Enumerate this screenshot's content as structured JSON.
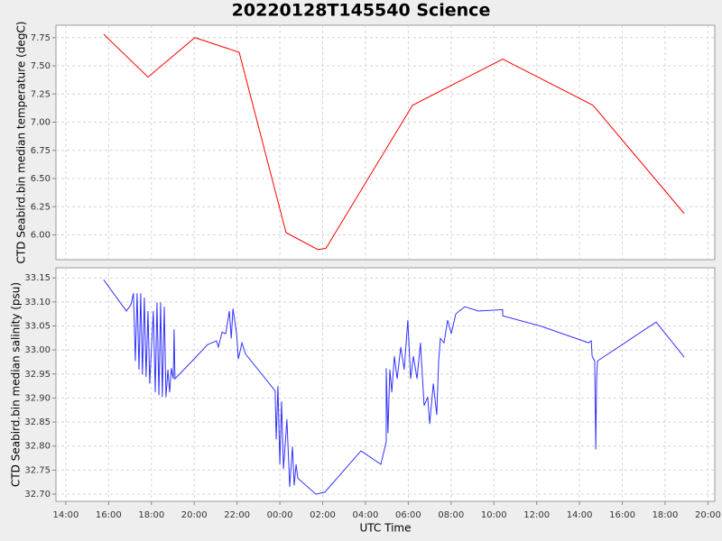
{
  "chart_data": [
    {
      "type": "line",
      "title": "20220128T145540 Science",
      "ylabel": "CTD Seabird.bin median temperature (degC)",
      "x": [
        15.77,
        17.84,
        20.03,
        22.1,
        24.29,
        25.77,
        26.15,
        30.2,
        34.41,
        38.63,
        42.89
      ],
      "values": [
        7.78,
        7.4,
        7.75,
        7.62,
        6.02,
        5.87,
        5.88,
        7.15,
        7.56,
        7.15,
        6.19
      ],
      "color": "#ff0000",
      "ylim": [
        5.78,
        7.86
      ],
      "yticks": [
        {
          "value": 6.0,
          "label": "6.00"
        },
        6.25,
        {
          "value": 6.5,
          "label": "6.50"
        },
        6.75,
        {
          "value": 7.0,
          "label": "7.00"
        },
        7.25,
        {
          "value": 7.5,
          "label": "7.50"
        },
        7.75
      ],
      "grid": true
    },
    {
      "type": "line",
      "ylabel": "CTD Seabird.bin median salinity (psu)",
      "xlabel": "UTC Time",
      "x": [
        15.77,
        16.83,
        17.04,
        17.16,
        17.25,
        17.33,
        17.42,
        17.5,
        17.58,
        17.67,
        17.75,
        17.84,
        17.92,
        18.09,
        18.18,
        18.26,
        18.35,
        18.43,
        18.51,
        18.6,
        18.68,
        18.77,
        18.85,
        18.93,
        19.02,
        19.06,
        19.1,
        19.99,
        20.62,
        21.04,
        21.13,
        21.3,
        21.47,
        21.64,
        21.73,
        21.81,
        21.98,
        22.06,
        22.23,
        22.39,
        23.78,
        23.83,
        23.91,
        24.0,
        24.08,
        24.17,
        24.33,
        24.46,
        24.59,
        24.67,
        24.76,
        24.84,
        25.68,
        26.1,
        27.79,
        28.72,
        28.97,
        28.97,
        29.05,
        29.14,
        29.23,
        29.35,
        29.48,
        29.65,
        29.81,
        29.98,
        30.11,
        30.24,
        30.41,
        30.57,
        30.74,
        30.91,
        31.0,
        31.17,
        31.33,
        31.42,
        31.5,
        31.67,
        31.84,
        32.01,
        32.22,
        32.64,
        33.27,
        34.41,
        34.41,
        36.23,
        38.42,
        38.55,
        38.59,
        38.71,
        38.76,
        38.8,
        38.84,
        41.58,
        42.89
      ],
      "values": [
        33.146,
        33.081,
        33.094,
        33.118,
        32.977,
        33.118,
        32.959,
        33.118,
        32.949,
        33.109,
        32.944,
        33.081,
        32.93,
        33.081,
        32.912,
        33.099,
        32.906,
        33.099,
        32.902,
        33.09,
        32.902,
        32.959,
        32.912,
        32.962,
        32.94,
        33.043,
        32.94,
        32.981,
        33.011,
        33.019,
        33.006,
        33.037,
        33.034,
        33.081,
        33.024,
        33.086,
        33.034,
        32.981,
        33.015,
        32.992,
        32.915,
        32.814,
        32.925,
        32.762,
        32.893,
        32.752,
        32.856,
        32.715,
        32.799,
        32.718,
        32.762,
        32.733,
        32.7,
        32.704,
        32.79,
        32.762,
        32.809,
        32.962,
        32.827,
        32.959,
        32.912,
        32.987,
        32.94,
        33.006,
        32.959,
        33.062,
        32.94,
        32.987,
        32.94,
        33.015,
        32.884,
        32.902,
        32.846,
        32.93,
        32.865,
        32.977,
        33.024,
        33.015,
        33.062,
        33.034,
        33.075,
        33.09,
        33.081,
        33.084,
        33.071,
        33.049,
        33.015,
        33.019,
        32.987,
        32.977,
        32.793,
        32.94,
        32.977,
        33.058,
        32.985
      ],
      "color": "#3333ff",
      "xlim": [
        13.54,
        44.32
      ],
      "xticks": [
        {
          "value": 14,
          "label": "14:00"
        },
        {
          "value": 16,
          "label": "16:00"
        },
        {
          "value": 18,
          "label": "18:00"
        },
        {
          "value": 20,
          "label": "20:00"
        },
        {
          "value": 22,
          "label": "22:00"
        },
        {
          "value": 24,
          "label": "00:00"
        },
        {
          "value": 26,
          "label": "02:00"
        },
        {
          "value": 28,
          "label": "04:00"
        },
        {
          "value": 30,
          "label": "06:00"
        },
        {
          "value": 32,
          "label": "08:00"
        },
        {
          "value": 34,
          "label": "10:00"
        },
        {
          "value": 36,
          "label": "12:00"
        },
        {
          "value": 38,
          "label": "14:00"
        },
        {
          "value": 40,
          "label": "16:00"
        },
        {
          "value": 42,
          "label": "18:00"
        },
        {
          "value": 44,
          "label": "20:00"
        }
      ],
      "ylim": [
        32.685,
        33.171
      ],
      "yticks": [
        {
          "value": 32.7,
          "label": "32.70"
        },
        32.75,
        {
          "value": 32.8,
          "label": "32.80"
        },
        32.85,
        {
          "value": 32.9,
          "label": "32.90"
        },
        32.95,
        {
          "value": 33.0,
          "label": "33.00"
        },
        33.05,
        {
          "value": 33.1,
          "label": "33.10"
        },
        33.15
      ],
      "grid": true
    }
  ]
}
